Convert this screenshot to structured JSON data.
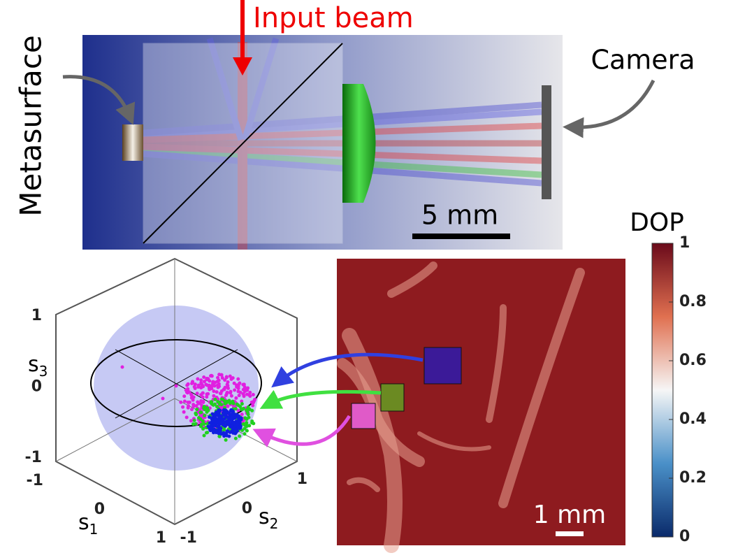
{
  "schematic": {
    "input_label": "Input beam",
    "metasurface_label": "Metasurface",
    "camera_label": "Camera",
    "scale_bar": "5 mm"
  },
  "poincare": {
    "s3_label": {
      "base": "s",
      "sub": "3"
    },
    "s1_label": {
      "base": "s",
      "sub": "1"
    },
    "s2_label": {
      "base": "s",
      "sub": "2"
    },
    "s3_ticks": [
      1,
      0,
      -1
    ],
    "s1_ticks": [
      -1,
      0,
      1
    ],
    "s2_ticks": [
      -1,
      0,
      1
    ]
  },
  "dop_map": {
    "title": "DOP",
    "scale_bar": "1 mm",
    "colorbar": {
      "lim": [
        0,
        1
      ],
      "ticks": [
        1,
        0.8,
        0.6,
        0.4,
        0.2,
        0
      ]
    }
  }
}
